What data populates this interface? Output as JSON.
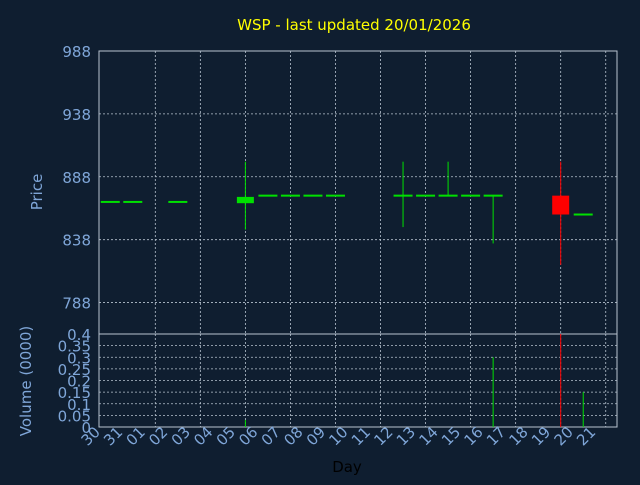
{
  "title": "WSP - last updated 20/01/2026",
  "colors": {
    "background": "#0f1e30",
    "title": "#ffff00",
    "axis_text": "#7fa6d8",
    "axis_label": "#b8c4d0",
    "grid": "#b8c4d0",
    "up": "#00e000",
    "down": "#ff0000"
  },
  "chart_data": [
    {
      "type": "candlestick",
      "title": "WSP - last updated 20/01/2026",
      "ylabel": "Price",
      "ylim": [
        763,
        988
      ],
      "yticks": [
        988,
        938,
        888,
        838,
        788
      ],
      "grid": true,
      "candles": [
        {
          "day": "30",
          "open": 868,
          "close": 868,
          "high": 868,
          "low": 868,
          "dir": "up"
        },
        {
          "day": "31",
          "open": 868,
          "close": 868,
          "high": 868,
          "low": 868,
          "dir": "up"
        },
        {
          "day": "02",
          "open": 868,
          "close": 868,
          "high": 868,
          "low": 868,
          "dir": "up"
        },
        {
          "day": "05",
          "open": 867,
          "close": 872,
          "high": 900,
          "low": 846,
          "dir": "up"
        },
        {
          "day": "06",
          "open": 873,
          "close": 873,
          "high": 873,
          "low": 873,
          "dir": "up"
        },
        {
          "day": "07",
          "open": 873,
          "close": 873,
          "high": 873,
          "low": 873,
          "dir": "up"
        },
        {
          "day": "08",
          "open": 873,
          "close": 873,
          "high": 873,
          "low": 873,
          "dir": "up"
        },
        {
          "day": "09",
          "open": 873,
          "close": 873,
          "high": 873,
          "low": 873,
          "dir": "up"
        },
        {
          "day": "12",
          "open": 873,
          "close": 873,
          "high": 900,
          "low": 848,
          "dir": "up"
        },
        {
          "day": "13",
          "open": 873,
          "close": 873,
          "high": 873,
          "low": 873,
          "dir": "up"
        },
        {
          "day": "14",
          "open": 873,
          "close": 873,
          "high": 900,
          "low": 873,
          "dir": "up"
        },
        {
          "day": "15",
          "open": 873,
          "close": 873,
          "high": 873,
          "low": 873,
          "dir": "up"
        },
        {
          "day": "16",
          "open": 873,
          "close": 873,
          "high": 873,
          "low": 835,
          "dir": "up"
        },
        {
          "day": "19",
          "open": 873,
          "close": 858,
          "high": 900,
          "low": 818,
          "dir": "down"
        },
        {
          "day": "20",
          "open": 858,
          "close": 858,
          "high": 858,
          "low": 858,
          "dir": "up"
        }
      ]
    },
    {
      "type": "bar",
      "ylabel": "Volume (0000)",
      "ylim": [
        0,
        0.4
      ],
      "yticks": [
        "0.4",
        "0.35",
        "0.3",
        "0.25",
        "0.2",
        "0.15",
        "0.1",
        "0.05",
        "0"
      ],
      "grid": true,
      "bars": [
        {
          "day": "05",
          "value": 0.03,
          "dir": "up"
        },
        {
          "day": "16",
          "value": 0.3,
          "dir": "up"
        },
        {
          "day": "19",
          "value": 0.4,
          "dir": "down"
        },
        {
          "day": "20",
          "value": 0.15,
          "dir": "up"
        }
      ]
    }
  ],
  "x_axis": {
    "xlabel": "Day",
    "ticks": [
      "30",
      "31",
      "01",
      "02",
      "03",
      "04",
      "05",
      "06",
      "07",
      "08",
      "09",
      "10",
      "11",
      "12",
      "13",
      "14",
      "15",
      "16",
      "17",
      "18",
      "19",
      "20",
      "21"
    ]
  }
}
